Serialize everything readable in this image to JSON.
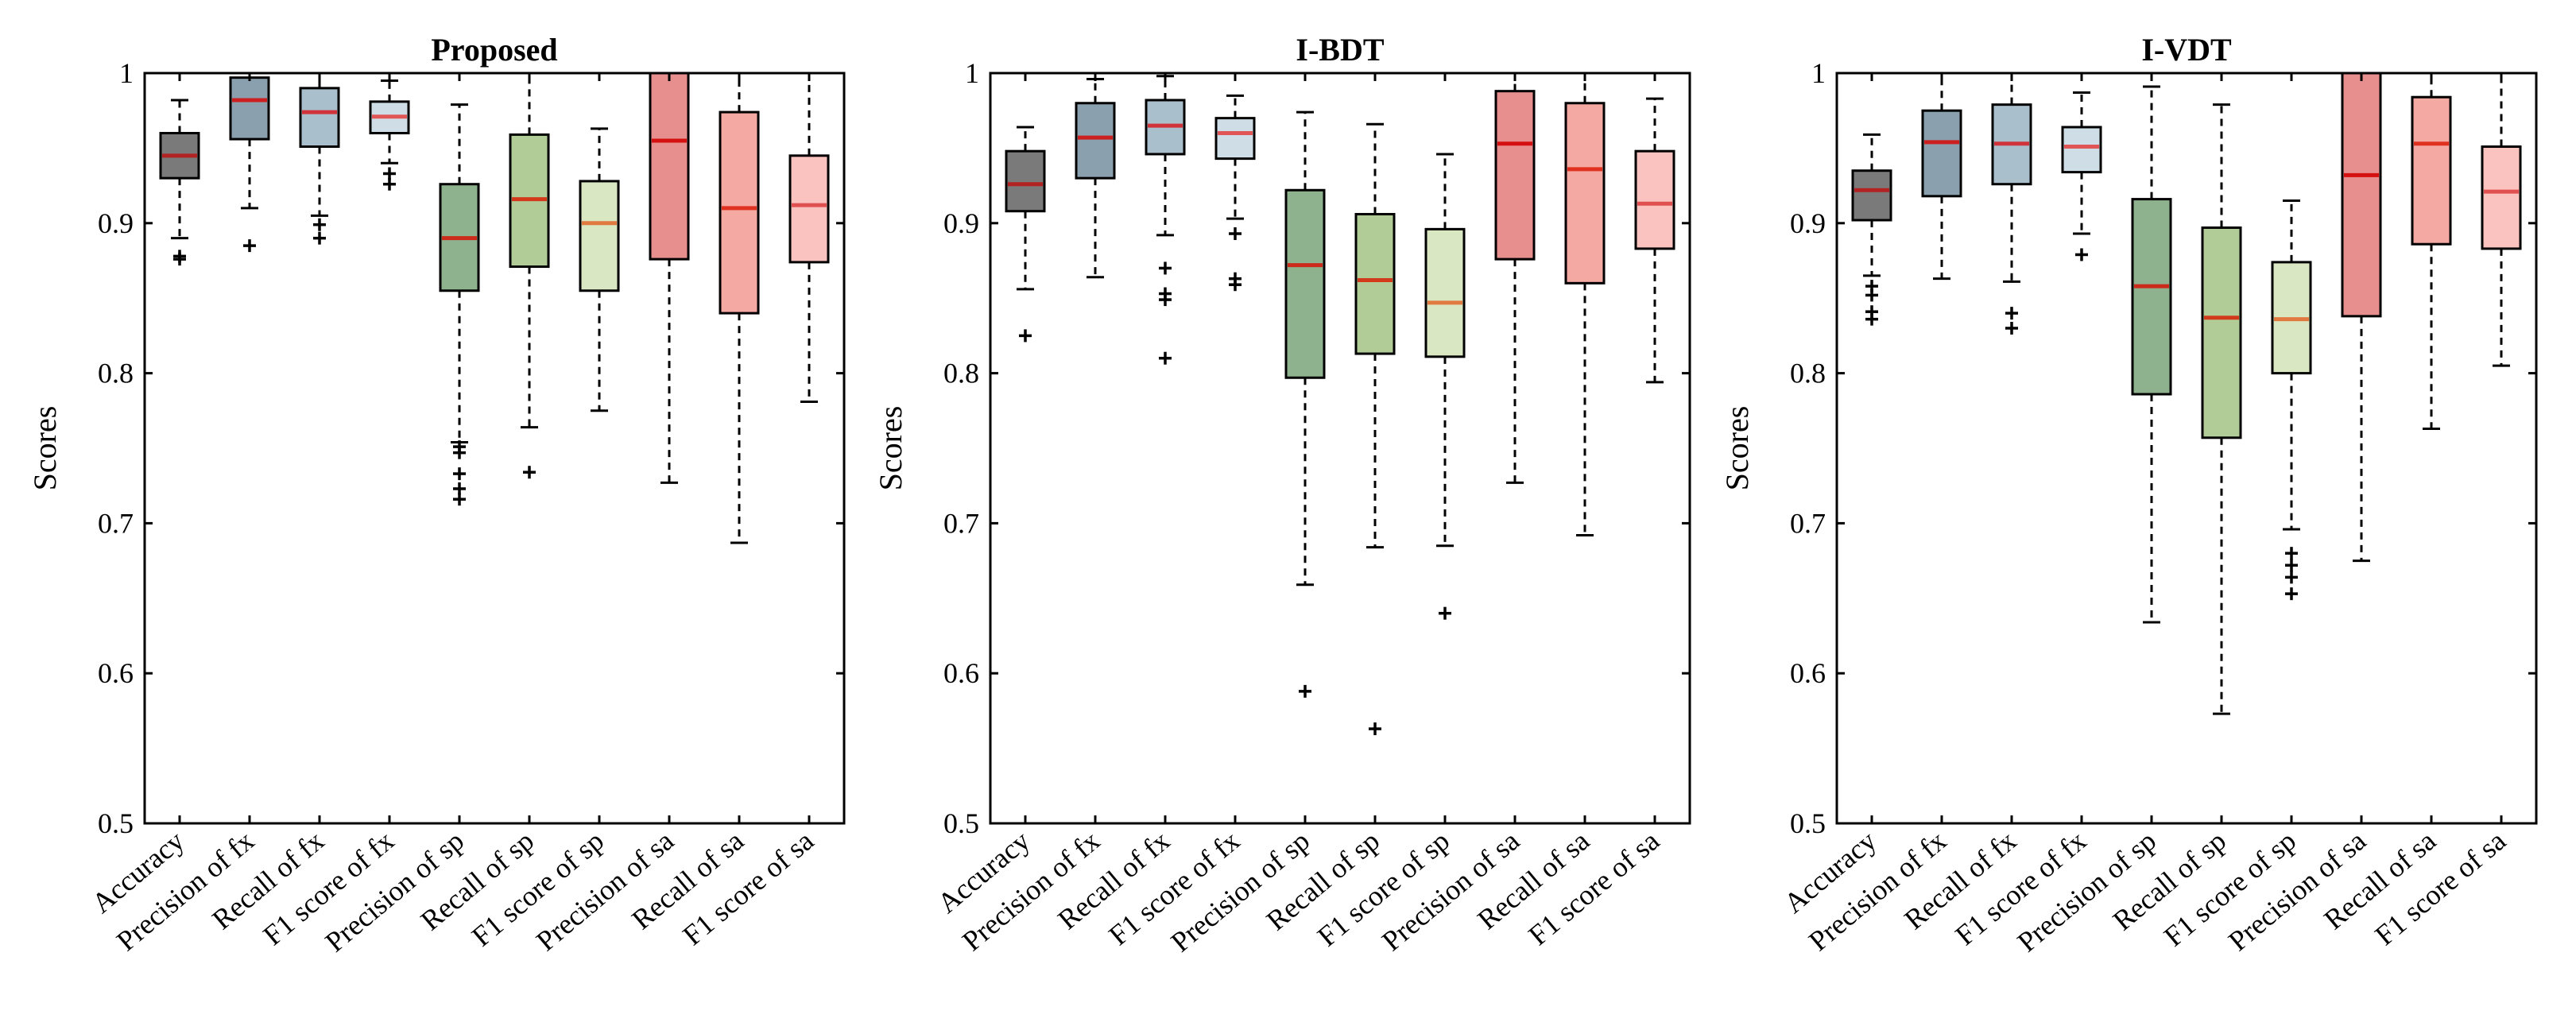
{
  "colors": {
    "axis": "#000000",
    "box_fills": [
      "#7a7a7a",
      "#8aa0ae",
      "#a9bfcc",
      "#cfdee6",
      "#8eb28e",
      "#b2cc98",
      "#d9e8c2",
      "#e78e8e",
      "#f4a9a2",
      "#fbc3bf"
    ],
    "medians": [
      "#b22222",
      "#cc2020",
      "#d0333a",
      "#e05555",
      "#cc2a1a",
      "#d13a1a",
      "#e07a40",
      "#d41010",
      "#e03020",
      "#e05050"
    ]
  },
  "chart_data": [
    {
      "type": "box",
      "title": "Proposed",
      "xlabel": "",
      "ylabel": "Scores",
      "ylim": [
        0.5,
        1
      ],
      "yticks": [
        "0.5",
        "0.6",
        "0.7",
        "0.8",
        "0.9",
        "1"
      ],
      "categories": [
        "Accuracy",
        "Precision of fx",
        "Recall of fx",
        "F1 score of fx",
        "Precision of sp",
        "Recall of sp",
        "F1 score of sp",
        "Precision of sa",
        "Recall of sa",
        "F1 score of sa"
      ],
      "boxes": [
        {
          "whislo": 0.89,
          "q1": 0.93,
          "med": 0.945,
          "q3": 0.96,
          "whishi": 0.982,
          "fliers": [
            0.876,
            0.878
          ]
        },
        {
          "whislo": 0.91,
          "q1": 0.956,
          "med": 0.982,
          "q3": 0.997,
          "whishi": 1.0,
          "fliers": [
            0.885
          ]
        },
        {
          "whislo": 0.905,
          "q1": 0.951,
          "med": 0.974,
          "q3": 0.99,
          "whishi": 1.0,
          "fliers": [
            0.89,
            0.899
          ]
        },
        {
          "whislo": 0.94,
          "q1": 0.96,
          "med": 0.971,
          "q3": 0.981,
          "whishi": 0.995,
          "fliers": [
            0.926,
            0.933
          ]
        },
        {
          "whislo": 0.754,
          "q1": 0.855,
          "med": 0.89,
          "q3": 0.926,
          "whishi": 0.979,
          "fliers": [
            0.716,
            0.723,
            0.733,
            0.747,
            0.751
          ]
        },
        {
          "whislo": 0.764,
          "q1": 0.871,
          "med": 0.916,
          "q3": 0.959,
          "whishi": 1.0,
          "fliers": [
            0.734
          ]
        },
        {
          "whislo": 0.775,
          "q1": 0.855,
          "med": 0.9,
          "q3": 0.928,
          "whishi": 0.963,
          "fliers": []
        },
        {
          "whislo": 0.727,
          "q1": 0.876,
          "med": 0.955,
          "q3": 1.0,
          "whishi": 1.0,
          "fliers": []
        },
        {
          "whislo": 0.687,
          "q1": 0.84,
          "med": 0.91,
          "q3": 0.974,
          "whishi": 1.0,
          "fliers": []
        },
        {
          "whislo": 0.781,
          "q1": 0.874,
          "med": 0.912,
          "q3": 0.945,
          "whishi": 1.0,
          "fliers": []
        }
      ]
    },
    {
      "type": "box",
      "title": "I-BDT",
      "xlabel": "",
      "ylabel": "Scores",
      "ylim": [
        0.5,
        1
      ],
      "yticks": [
        "0.5",
        "0.6",
        "0.7",
        "0.8",
        "0.9",
        "1"
      ],
      "categories": [
        "Accuracy",
        "Precision of fx",
        "Recall of fx",
        "F1 score of fx",
        "Precision of sp",
        "Recall of sp",
        "F1 score of sp",
        "Precision of sa",
        "Recall of sa",
        "F1 score of sa"
      ],
      "boxes": [
        {
          "whislo": 0.856,
          "q1": 0.908,
          "med": 0.926,
          "q3": 0.948,
          "whishi": 0.964,
          "fliers": [
            0.825
          ]
        },
        {
          "whislo": 0.864,
          "q1": 0.93,
          "med": 0.957,
          "q3": 0.98,
          "whishi": 0.996,
          "fliers": []
        },
        {
          "whislo": 0.892,
          "q1": 0.946,
          "med": 0.965,
          "q3": 0.982,
          "whishi": 0.998,
          "fliers": [
            0.81,
            0.849,
            0.853,
            0.87
          ]
        },
        {
          "whislo": 0.903,
          "q1": 0.943,
          "med": 0.96,
          "q3": 0.97,
          "whishi": 0.985,
          "fliers": [
            0.859,
            0.863,
            0.893
          ]
        },
        {
          "whislo": 0.659,
          "q1": 0.797,
          "med": 0.872,
          "q3": 0.922,
          "whishi": 0.974,
          "fliers": [
            0.588
          ]
        },
        {
          "whislo": 0.684,
          "q1": 0.813,
          "med": 0.862,
          "q3": 0.906,
          "whishi": 0.966,
          "fliers": [
            0.563
          ]
        },
        {
          "whislo": 0.685,
          "q1": 0.811,
          "med": 0.847,
          "q3": 0.896,
          "whishi": 0.946,
          "fliers": [
            0.64
          ]
        },
        {
          "whislo": 0.727,
          "q1": 0.876,
          "med": 0.953,
          "q3": 0.988,
          "whishi": 1.0,
          "fliers": []
        },
        {
          "whislo": 0.692,
          "q1": 0.86,
          "med": 0.936,
          "q3": 0.98,
          "whishi": 1.0,
          "fliers": []
        },
        {
          "whislo": 0.794,
          "q1": 0.883,
          "med": 0.913,
          "q3": 0.948,
          "whishi": 0.983,
          "fliers": []
        }
      ]
    },
    {
      "type": "box",
      "title": "I-VDT",
      "xlabel": "",
      "ylabel": "Scores",
      "ylim": [
        0.5,
        1
      ],
      "yticks": [
        "0.5",
        "0.6",
        "0.7",
        "0.8",
        "0.9",
        "1"
      ],
      "categories": [
        "Accuracy",
        "Precision of fx",
        "Recall of fx",
        "F1 score of fx",
        "Precision of sp",
        "Recall of sp",
        "F1 score of sp",
        "Precision of sa",
        "Recall of sa",
        "F1 score of sa"
      ],
      "boxes": [
        {
          "whislo": 0.865,
          "q1": 0.902,
          "med": 0.922,
          "q3": 0.935,
          "whishi": 0.959,
          "fliers": [
            0.836,
            0.841,
            0.852,
            0.858
          ]
        },
        {
          "whislo": 0.863,
          "q1": 0.918,
          "med": 0.954,
          "q3": 0.975,
          "whishi": 1.0,
          "fliers": []
        },
        {
          "whislo": 0.861,
          "q1": 0.926,
          "med": 0.953,
          "q3": 0.979,
          "whishi": 1.0,
          "fliers": [
            0.83,
            0.84
          ]
        },
        {
          "whislo": 0.893,
          "q1": 0.934,
          "med": 0.951,
          "q3": 0.964,
          "whishi": 0.987,
          "fliers": [
            0.879
          ]
        },
        {
          "whislo": 0.634,
          "q1": 0.786,
          "med": 0.858,
          "q3": 0.916,
          "whishi": 0.991,
          "fliers": []
        },
        {
          "whislo": 0.573,
          "q1": 0.757,
          "med": 0.837,
          "q3": 0.897,
          "whishi": 0.979,
          "fliers": []
        },
        {
          "whislo": 0.696,
          "q1": 0.8,
          "med": 0.836,
          "q3": 0.874,
          "whishi": 0.915,
          "fliers": [
            0.653,
            0.664,
            0.672,
            0.68
          ]
        },
        {
          "whislo": 0.675,
          "q1": 0.838,
          "med": 0.932,
          "q3": 1.0,
          "whishi": 1.0,
          "fliers": []
        },
        {
          "whislo": 0.763,
          "q1": 0.886,
          "med": 0.953,
          "q3": 0.984,
          "whishi": 1.0,
          "fliers": []
        },
        {
          "whislo": 0.805,
          "q1": 0.883,
          "med": 0.921,
          "q3": 0.951,
          "whishi": 1.0,
          "fliers": []
        }
      ]
    }
  ]
}
